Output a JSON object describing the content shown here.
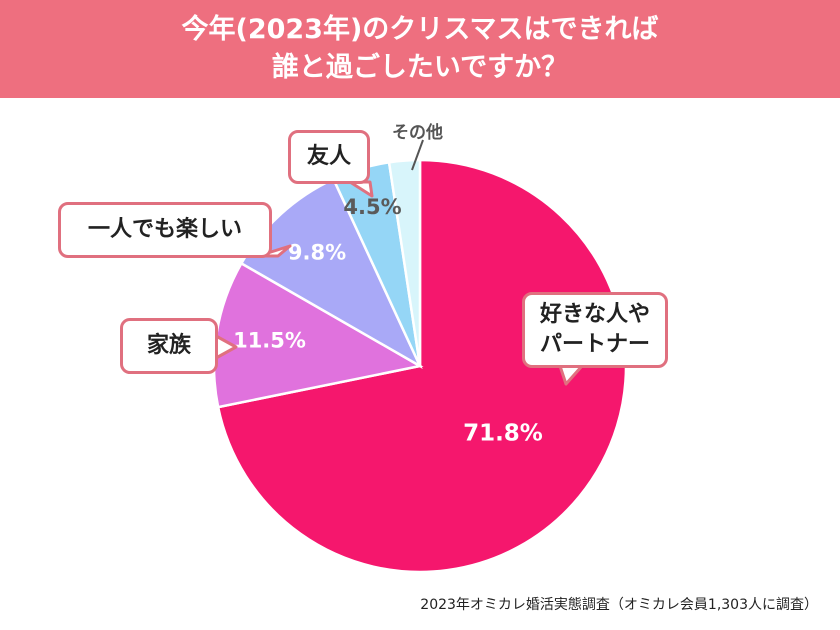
{
  "header": {
    "title_line1": "今年(2023年)のクリスマスはできれば",
    "title_line2": "誰と過ごしたいですか？"
  },
  "chart_data": {
    "type": "pie",
    "title": "今年(2023年)のクリスマスはできれば誰と過ごしたいですか？",
    "slices": [
      {
        "label": "好きな人やパートナー",
        "label_lines": [
          "好きな人や",
          "パートナー"
        ],
        "value": 71.8,
        "value_label": "71.8%",
        "color": "#f5176d",
        "text_color": "#ffffff"
      },
      {
        "label": "家族",
        "label_lines": [
          "家族"
        ],
        "value": 11.5,
        "value_label": "11.5%",
        "color": "#e072dd",
        "text_color": "#ffffff"
      },
      {
        "label": "一人でも楽しい",
        "label_lines": [
          "一人でも楽しい"
        ],
        "value": 9.8,
        "value_label": "9.8%",
        "color": "#a9a9f7",
        "text_color": "#ffffff"
      },
      {
        "label": "友人",
        "label_lines": [
          "友人"
        ],
        "value": 4.5,
        "value_label": "4.5%",
        "color": "#95d6f6",
        "text_color": "#5a5a5a"
      },
      {
        "label": "その他",
        "label_lines": [
          "その他"
        ],
        "value": 2.4,
        "value_label": "",
        "color": "#d8f5fb",
        "text_color": "#5a5a5a"
      }
    ]
  },
  "footer": {
    "source": "2023年オミカレ婚活実態調査（オミカレ会員1,303人に調査）"
  },
  "colors": {
    "header_bg": "#ee6f7f",
    "callout_border": "#e0707f"
  }
}
